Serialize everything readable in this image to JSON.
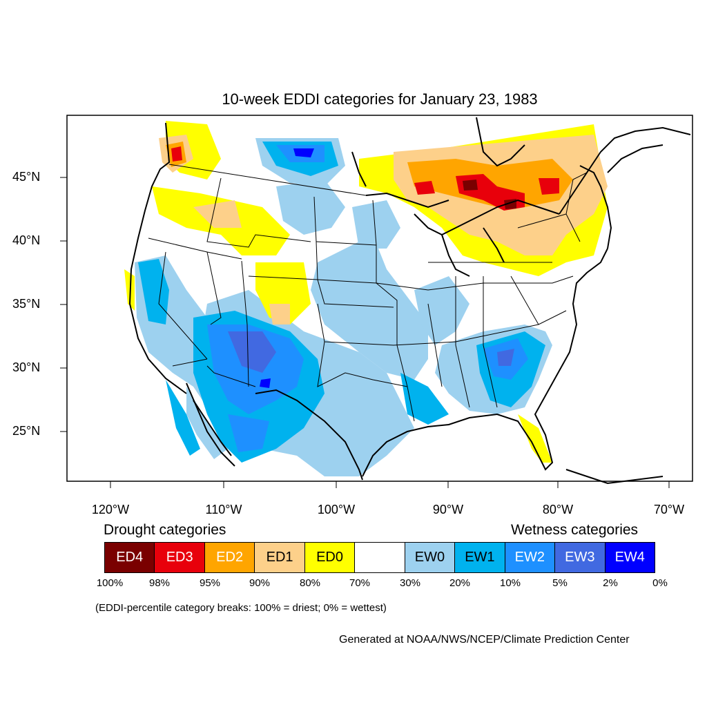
{
  "title": "10-week EDDI categories for January 23, 1983",
  "lat_labels": [
    "45°N",
    "40°N",
    "35°N",
    "30°N",
    "25°N"
  ],
  "lon_labels": [
    "120°W",
    "110°W",
    "100°W",
    "90°W",
    "80°W",
    "70°W"
  ],
  "drought_heading": "Drought categories",
  "wetness_heading": "Wetness categories",
  "legend": [
    {
      "label": "ED4",
      "color": "#7a0000",
      "text_color": "#ffffff"
    },
    {
      "label": "ED3",
      "color": "#e8000b",
      "text_color": "#ffffff"
    },
    {
      "label": "ED2",
      "color": "#ffa500",
      "text_color": "#ffffff"
    },
    {
      "label": "ED1",
      "color": "#fdd08a",
      "text_color": "#000000"
    },
    {
      "label": "ED0",
      "color": "#ffff00",
      "text_color": "#000000"
    },
    {
      "label": "",
      "color": "#ffffff",
      "text_color": "#000000"
    },
    {
      "label": "EW0",
      "color": "#9dd1ef",
      "text_color": "#000000"
    },
    {
      "label": "EW1",
      "color": "#00b2ee",
      "text_color": "#000000"
    },
    {
      "label": "EW2",
      "color": "#1e90ff",
      "text_color": "#ffffff"
    },
    {
      "label": "EW3",
      "color": "#4169e1",
      "text_color": "#ffffff"
    },
    {
      "label": "EW4",
      "color": "#0000ff",
      "text_color": "#ffffff"
    }
  ],
  "breaks": [
    "100%",
    "98%",
    "95%",
    "90%",
    "80%",
    "70%",
    "30%",
    "20%",
    "10%",
    "5%",
    "2%",
    "0%"
  ],
  "note": "(EDDI-percentile category breaks: 100% = driest; 0% = wettest)",
  "credit": "Generated at NOAA/NWS/NCEP/Climate Prediction Center"
}
